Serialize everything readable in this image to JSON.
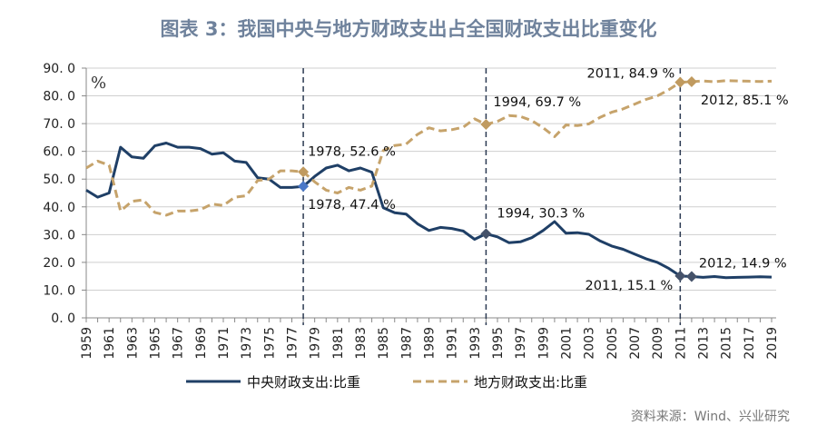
{
  "title": "图表 3：我国中央与地方财政支出占全国财政支出比重变化",
  "source": "资料来源：Wind、兴业研究",
  "colors": {
    "central": "#1f3f66",
    "local": "#c6a36b",
    "marker_1978": "#4a78c8",
    "grid": "#cfcfcf",
    "title": "#6f829c"
  },
  "chart_data": {
    "type": "line",
    "title": "图表 3：我国中央与地方财政支出占全国财政支出比重变化",
    "unit_label": "%",
    "ylim": [
      0,
      90
    ],
    "yticks": [
      "0. 0",
      "10. 0",
      "20. 0",
      "30. 0",
      "40. 0",
      "50. 0",
      "60. 0",
      "70. 0",
      "80. 0",
      "90. 0"
    ],
    "x": [
      1959,
      1960,
      1961,
      1962,
      1963,
      1964,
      1965,
      1966,
      1967,
      1968,
      1969,
      1970,
      1971,
      1972,
      1973,
      1974,
      1975,
      1976,
      1977,
      1978,
      1979,
      1980,
      1981,
      1982,
      1983,
      1984,
      1985,
      1986,
      1987,
      1988,
      1989,
      1990,
      1991,
      1992,
      1993,
      1994,
      1995,
      1996,
      1997,
      1998,
      1999,
      2000,
      2001,
      2002,
      2003,
      2004,
      2005,
      2006,
      2007,
      2008,
      2009,
      2010,
      2011,
      2012,
      2013,
      2014,
      2015,
      2016,
      2017,
      2018,
      2019
    ],
    "xticks": [
      "1959",
      "1961",
      "1963",
      "1965",
      "1967",
      "1969",
      "1971",
      "1973",
      "1975",
      "1977",
      "1979",
      "1981",
      "1983",
      "1985",
      "1987",
      "1989",
      "1991",
      "1993",
      "1995",
      "1997",
      "1999",
      "2001",
      "2003",
      "2005",
      "2007",
      "2009",
      "2011",
      "2013",
      "2015",
      "2017",
      "2019"
    ],
    "vlines": [
      1978,
      1994,
      2011
    ],
    "grid": true,
    "legend_position": "bottom",
    "series": [
      {
        "name": "中央财政支出:比重",
        "style": "solid",
        "values": [
          46.0,
          43.5,
          45.0,
          61.5,
          58.0,
          57.5,
          62.0,
          63.0,
          61.5,
          61.5,
          61.0,
          59.0,
          59.5,
          56.5,
          56.0,
          50.5,
          50.0,
          47.0,
          47.0,
          47.4,
          51.0,
          54.0,
          55.0,
          53.0,
          54.0,
          52.5,
          39.7,
          37.9,
          37.4,
          33.9,
          31.5,
          32.6,
          32.2,
          31.3,
          28.3,
          30.3,
          29.2,
          27.1,
          27.4,
          28.9,
          31.5,
          34.7,
          30.5,
          30.7,
          30.1,
          27.7,
          25.9,
          24.7,
          23.0,
          21.3,
          20.0,
          17.8,
          15.1,
          14.9,
          14.6,
          14.9,
          14.5,
          14.6,
          14.7,
          14.8,
          14.7
        ]
      },
      {
        "name": "地方财政支出:比重",
        "style": "dashed",
        "values": [
          54.0,
          56.5,
          55.0,
          38.5,
          42.0,
          42.5,
          38.0,
          37.0,
          38.5,
          38.5,
          39.0,
          41.0,
          40.5,
          43.5,
          44.0,
          49.5,
          50.0,
          53.0,
          53.0,
          52.6,
          49.0,
          46.0,
          45.0,
          47.0,
          46.0,
          47.5,
          60.3,
          62.1,
          62.6,
          66.1,
          68.5,
          67.4,
          67.8,
          68.7,
          71.7,
          69.7,
          70.8,
          72.9,
          72.6,
          71.1,
          68.5,
          65.3,
          69.5,
          69.3,
          69.9,
          72.3,
          74.1,
          75.3,
          77.0,
          78.7,
          80.0,
          82.2,
          84.9,
          85.1,
          85.4,
          85.1,
          85.5,
          85.4,
          85.3,
          85.2,
          85.3
        ]
      }
    ],
    "annotations": [
      {
        "series": 1,
        "year": 1978,
        "text": "1978, 52.6 %"
      },
      {
        "series": 0,
        "year": 1978,
        "text": "1978, 47.4 %"
      },
      {
        "series": 1,
        "year": 1994,
        "text": "1994, 69.7 %"
      },
      {
        "series": 0,
        "year": 1994,
        "text": "1994, 30.3 %"
      },
      {
        "series": 1,
        "year": 2011,
        "text": "2011, 84.9 %"
      },
      {
        "series": 1,
        "year": 2012,
        "text": "2012, 85.1 %"
      },
      {
        "series": 0,
        "year": 2011,
        "text": "2011, 15.1 %"
      },
      {
        "series": 0,
        "year": 2012,
        "text": "2012, 14.9 %"
      }
    ]
  }
}
